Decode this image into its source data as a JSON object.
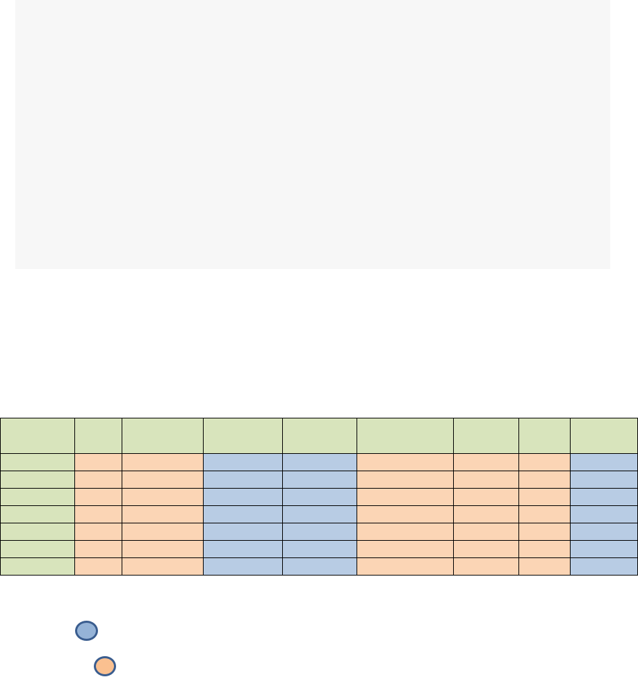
{
  "colors": {
    "page_background": "#ffffff",
    "box_background": "#f7f7f7",
    "header_row": "#d8e4bc",
    "first_column": "#d8e4bc",
    "orange_cells": "#fbd5b5",
    "blue_cells": "#b8cce4",
    "cell_border": "#000000",
    "circle_blue_fill": "#95b3d7",
    "circle_orange_fill": "#fac090",
    "circle_outline": "#3a5d8f"
  },
  "table": {
    "header_cells": [
      "",
      "",
      "",
      "",
      "",
      "",
      "",
      "",
      ""
    ],
    "column_color_pattern": [
      "green",
      "orange",
      "orange",
      "blue",
      "blue",
      "orange",
      "orange",
      "orange",
      "blue"
    ],
    "body_row_count": 7
  },
  "legend": [
    {
      "icon": "blue-circle-icon",
      "color": "blue"
    },
    {
      "icon": "orange-circle-icon",
      "color": "orange"
    }
  ]
}
